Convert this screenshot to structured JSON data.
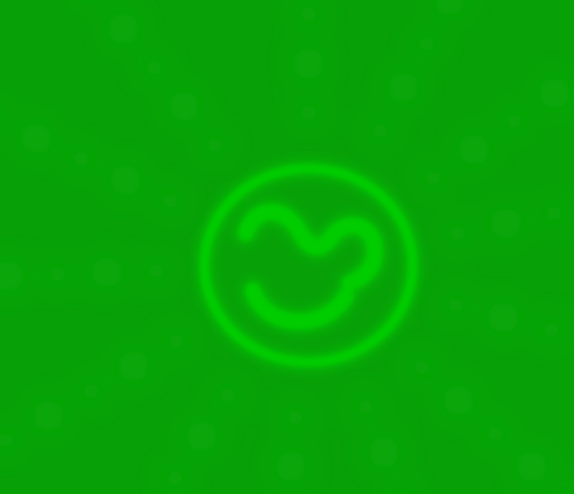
{
  "colors": {
    "background": "#07a107",
    "ray_glow": "#0cb40c",
    "logo_glow": "#00d400",
    "logo_stroke": "#00cc00"
  },
  "logo": {
    "icon": "glowing-smiley-face-emblem"
  }
}
